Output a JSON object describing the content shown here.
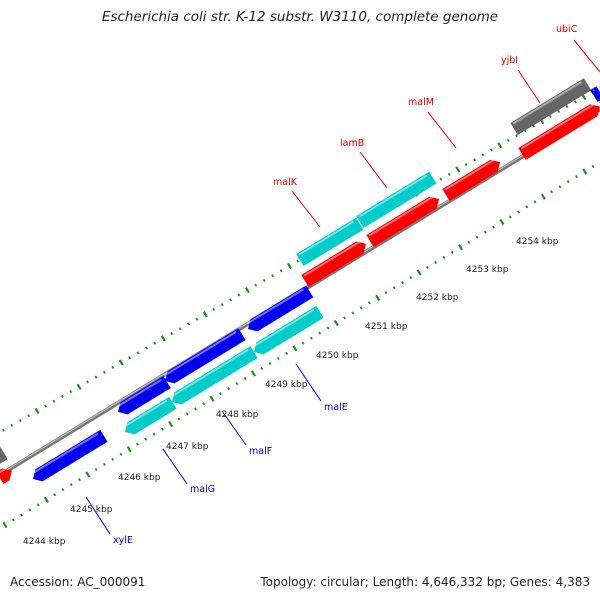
{
  "title": "Escherichia coli str. K-12 substr. W3110, complete genome",
  "footer": {
    "accession": "Accession: AC_000091",
    "summary": "Topology: circular; Length: 4,646,332 bp; Genes: 4,383"
  },
  "colors": {
    "forward_gene": "#ff0000",
    "forward_label": "#dd0000",
    "reverse_gene": "#0000ee",
    "reverse_label": "#0000cc",
    "cds_reverse": "#00cccc",
    "other_feature": "#666666",
    "backbone": "#888888",
    "tick": "#228b22"
  },
  "ticks": [
    {
      "label": "4244 kbp"
    },
    {
      "label": "4245 kbp"
    },
    {
      "label": "4246 kbp"
    },
    {
      "label": "4247 kbp"
    },
    {
      "label": "4248 kbp"
    },
    {
      "label": "4249 kbp"
    },
    {
      "label": "4250 kbp"
    },
    {
      "label": "4251 kbp"
    },
    {
      "label": "4252 kbp"
    },
    {
      "label": "4253 kbp"
    },
    {
      "label": "4254 kbp"
    }
  ],
  "genes": [
    {
      "name": "ubiC",
      "strand": "forward"
    },
    {
      "name": "yjbI",
      "strand": "forward"
    },
    {
      "name": "malM",
      "strand": "forward"
    },
    {
      "name": "lamB",
      "strand": "forward"
    },
    {
      "name": "malK",
      "strand": "forward"
    },
    {
      "name": "malE",
      "strand": "reverse"
    },
    {
      "name": "malF",
      "strand": "reverse"
    },
    {
      "name": "malG",
      "strand": "reverse"
    },
    {
      "name": "xylE",
      "strand": "reverse"
    }
  ]
}
